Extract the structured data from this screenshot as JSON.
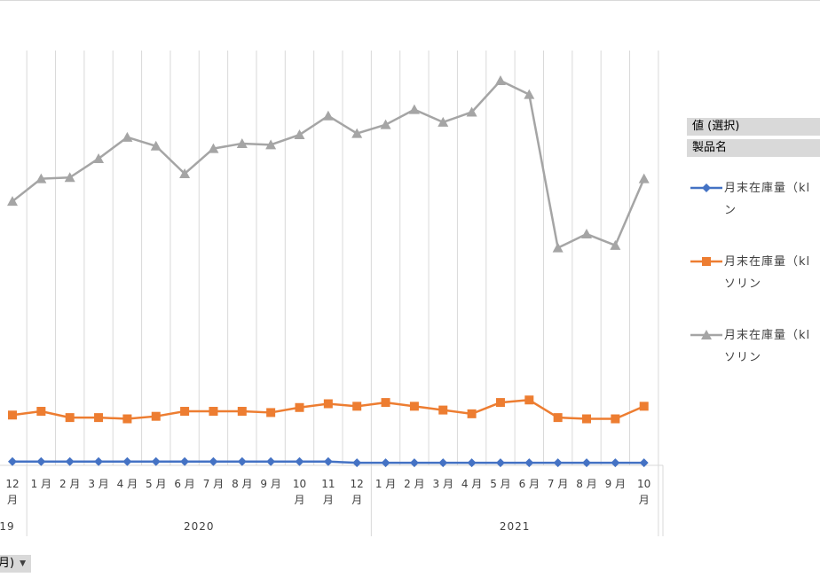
{
  "chart_data": {
    "type": "line",
    "x": [
      "12月",
      "1月",
      "2月",
      "3月",
      "4月",
      "5月",
      "6月",
      "7月",
      "8月",
      "9月",
      "10月",
      "11月",
      "12月",
      "1月",
      "2月",
      "3月",
      "4月",
      "5月",
      "6月",
      "7月",
      "8月",
      "9月",
      "10月"
    ],
    "year_groups": [
      {
        "label": "19",
        "start": 0,
        "end": 0
      },
      {
        "label": "2020",
        "start": 1,
        "end": 12
      },
      {
        "label": "2021",
        "start": 13,
        "end": 22
      }
    ],
    "series": [
      {
        "name": "月末在庫量（kl）ン",
        "color": "#4472c4",
        "marker": "diamond",
        "values": [
          3,
          3,
          3,
          3,
          3,
          3,
          3,
          3,
          3,
          3,
          3,
          3,
          2,
          2,
          2,
          2,
          2,
          2,
          2,
          2,
          2,
          2,
          2
        ]
      },
      {
        "name": "月末在庫量（kl）ソリン",
        "color": "#ed7d31",
        "marker": "square",
        "values": [
          40,
          43,
          38,
          38,
          37,
          39,
          43,
          43,
          43,
          42,
          46,
          49,
          47,
          50,
          47,
          44,
          41,
          50,
          52,
          38,
          37,
          37,
          47
        ]
      },
      {
        "name": "月末在庫量（kl）ソリン",
        "color": "#a5a5a5",
        "marker": "triangle",
        "values": [
          210,
          228,
          229,
          244,
          261,
          254,
          232,
          252,
          256,
          255,
          263,
          278,
          264,
          271,
          283,
          273,
          281,
          306,
          295,
          173,
          184,
          175,
          228
        ]
      }
    ],
    "ylim": [
      0,
      330
    ],
    "grid": "vertical"
  },
  "legend": {
    "field_header": "値 (選択)",
    "category_header": "製品名",
    "items": [
      {
        "line1": "月末在庫量（kl",
        "line2": "ン"
      },
      {
        "line1": "月末在庫量（kl",
        "line2": "ソリン"
      },
      {
        "line1": "月末在庫量（kl",
        "line2": "ソリン"
      }
    ]
  },
  "field_button_label": "月)"
}
